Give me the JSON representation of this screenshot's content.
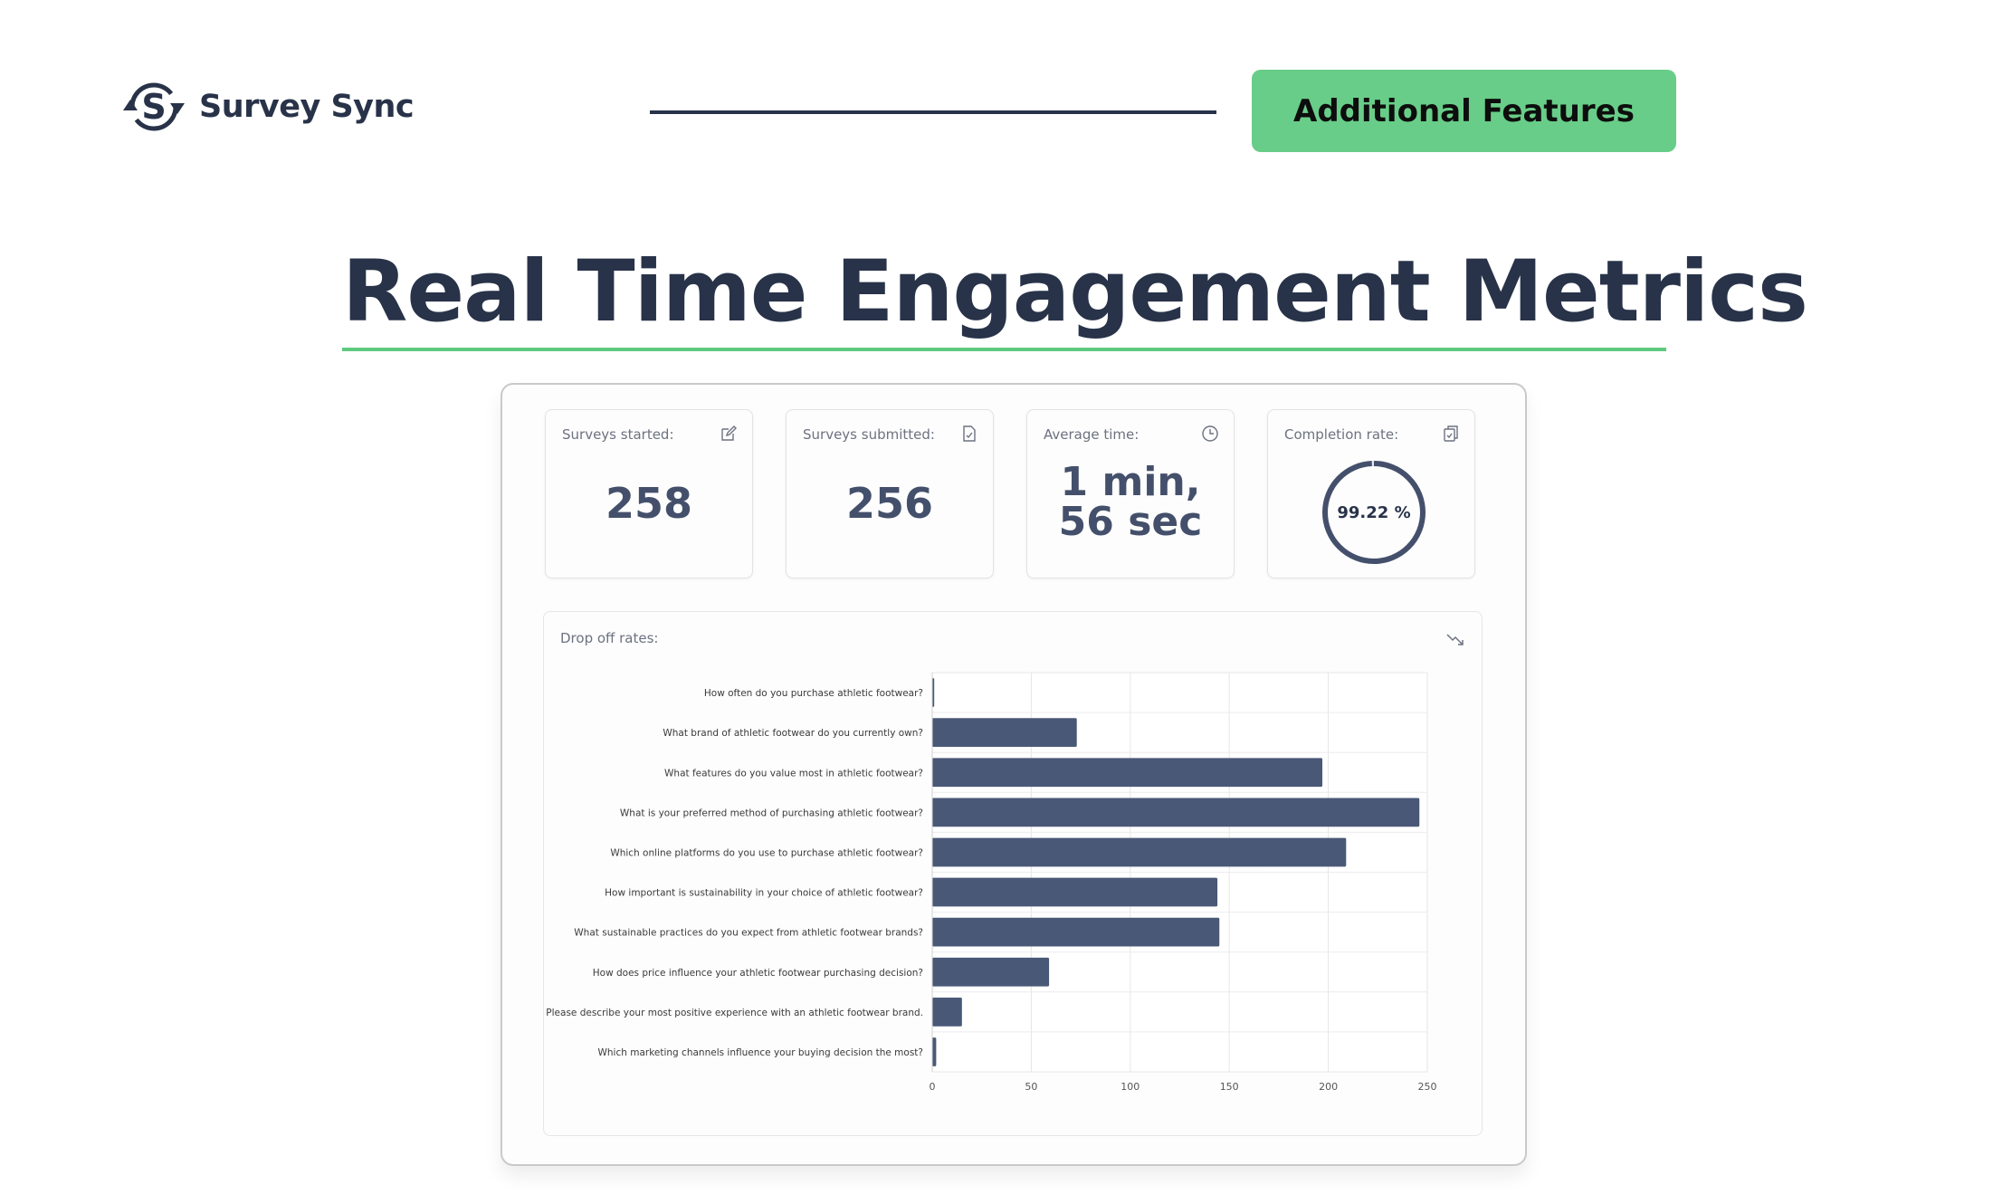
{
  "header": {
    "brand": "Survey Sync",
    "cta_label": "Additional Features"
  },
  "page": {
    "title": "Real Time Engagement Metrics"
  },
  "colors": {
    "accent_green": "#68cd88",
    "navy": "#283349",
    "bar": "#4a5878"
  },
  "metrics": {
    "started": {
      "label": "Surveys started:",
      "value": "258",
      "icon": "edit-icon"
    },
    "submitted": {
      "label": "Surveys submitted:",
      "value": "256",
      "icon": "file-check-icon"
    },
    "avg_time": {
      "label": "Average time:",
      "value": "1 min, 56 sec",
      "icon": "clock-icon"
    },
    "completion": {
      "label": "Completion rate:",
      "value": "99.22 %",
      "fraction": 0.9922,
      "icon": "clipboard-check-icon"
    }
  },
  "dropoff": {
    "label": "Drop off rates:",
    "icon": "trend-down-icon"
  },
  "chart_data": {
    "type": "bar",
    "orientation": "horizontal",
    "categories": [
      "How often do you purchase athletic footwear?",
      "What brand of athletic footwear do you currently own?",
      "What features do you value most in athletic footwear?",
      "What is your preferred method of purchasing athletic footwear?",
      "Which online platforms do you use to purchase athletic footwear?",
      "How important is sustainability in your choice of athletic footwear?",
      "What sustainable practices do you expect from athletic footwear brands?",
      "How does price influence your athletic footwear purchasing decision?",
      "Please describe your most positive experience with an athletic footwear brand.",
      "Which marketing channels influence your buying decision the most?"
    ],
    "values": [
      1,
      73,
      197,
      246,
      209,
      144,
      145,
      59,
      15,
      2
    ],
    "xticks": [
      "0",
      "50",
      "100",
      "150",
      "200",
      "250"
    ],
    "xlim": [
      0,
      250
    ],
    "grid": true,
    "title": "",
    "xlabel": "",
    "ylabel": ""
  }
}
